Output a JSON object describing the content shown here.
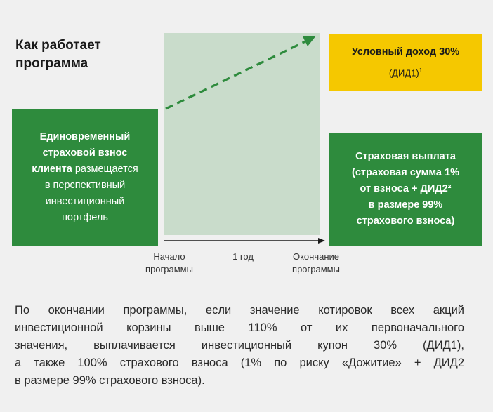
{
  "title": {
    "line1": "Как работает",
    "line2": "программа"
  },
  "left_box": {
    "bold_1": "Единовременный",
    "bold_2": "страховой взнос",
    "bold_3": "клиента",
    "rest_1": " размещается",
    "rest_2": "в перспективный",
    "rest_3": "инвестиционный",
    "rest_4": "портфель"
  },
  "gold_box": {
    "line1": "Условный доход 30%",
    "line2": "(ДИД1)",
    "sup": "1"
  },
  "right_box": {
    "line1": "Страховая выплата",
    "line2": "(страховая сумма 1%",
    "line3": "от  взноса + ДИД2²",
    "line4": "в  размере 99%",
    "line5": "страхового взноса)"
  },
  "axis": {
    "start_1": "Начало",
    "start_2": "программы",
    "middle": "1 год",
    "end_1": "Окончание",
    "end_2": "программы"
  },
  "footnote": {
    "line1": "По окончании программы, если значение котировок всех акций",
    "line2": "инвестиционной корзины выше 110% от их первоначального",
    "line3": "значения,   выплачивается инвестиционный купон 30% (ДИД1),",
    "line4": "а также 100%  страхового взноса (1% по риску «Дожитие» + ДИД2",
    "line5": "в размере 99%  страхового взноса)."
  },
  "colors": {
    "green": "#2e8b3d",
    "light_green": "#c9dccb",
    "gold": "#f5c800",
    "dashed_arrow": "#2e8b3d"
  }
}
